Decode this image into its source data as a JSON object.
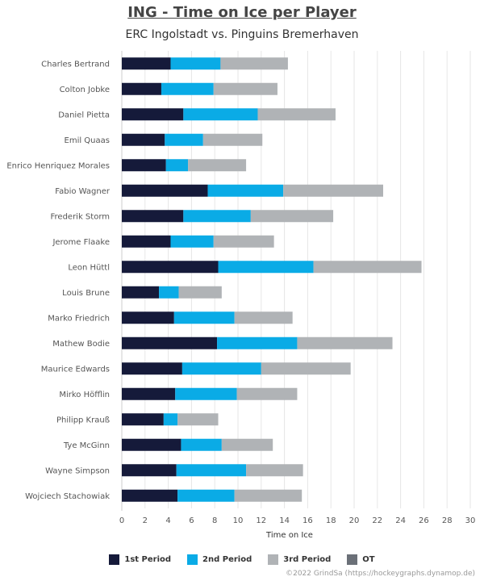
{
  "colors": {
    "p1": "#151a3a",
    "p2": "#0aabe6",
    "p3": "#b0b3b6",
    "ot": "#6b7078",
    "grid": "#e6e6e6",
    "axis_text": "#555555"
  },
  "chart_data": {
    "type": "bar",
    "orientation": "horizontal",
    "stacked": true,
    "title": "ING - Time on Ice per Player",
    "subtitle": "ERC Ingolstadt vs. Pinguins Bremerhaven",
    "xlabel": "Time on Ice",
    "ylabel": "",
    "xlim": [
      0,
      30
    ],
    "xticks": [
      0,
      2,
      4,
      6,
      8,
      10,
      12,
      14,
      16,
      18,
      20,
      22,
      24,
      26,
      28,
      30
    ],
    "grid": true,
    "legend_position": "bottom",
    "categories": [
      "Charles Bertrand",
      "Colton Jobke",
      "Daniel Pietta",
      "Emil Quaas",
      "Enrico Henriquez Morales",
      "Fabio Wagner",
      "Frederik Storm",
      "Jerome Flaake",
      "Leon Hüttl",
      "Louis Brune",
      "Marko Friedrich",
      "Mathew Bodie",
      "Maurice Edwards",
      "Mirko Höfflin",
      "Philipp Krauß",
      "Tye McGinn",
      "Wayne Simpson",
      "Wojciech Stachowiak"
    ],
    "series": [
      {
        "name": "1st Period",
        "values": [
          4.2,
          3.4,
          5.3,
          3.7,
          3.8,
          7.4,
          5.3,
          4.2,
          8.3,
          3.2,
          4.5,
          8.2,
          5.2,
          4.6,
          3.6,
          5.1,
          4.7,
          4.8
        ]
      },
      {
        "name": "2nd Period",
        "values": [
          4.3,
          4.5,
          6.4,
          3.3,
          1.9,
          6.5,
          5.8,
          3.7,
          8.2,
          1.7,
          5.2,
          6.9,
          6.8,
          5.3,
          1.2,
          3.5,
          6.0,
          4.9
        ]
      },
      {
        "name": "3rd Period",
        "values": [
          5.8,
          5.5,
          6.7,
          5.1,
          5.0,
          8.6,
          7.1,
          5.2,
          9.3,
          3.7,
          5.0,
          8.2,
          7.7,
          5.2,
          3.5,
          4.4,
          4.9,
          5.8
        ]
      },
      {
        "name": "OT",
        "values": [
          0,
          0,
          0,
          0,
          0,
          0,
          0,
          0,
          0,
          0,
          0,
          0,
          0,
          0,
          0,
          0,
          0,
          0
        ]
      }
    ]
  },
  "credit": "©2022 GrindSa (https://hockeygraphs.dynamop.de)"
}
